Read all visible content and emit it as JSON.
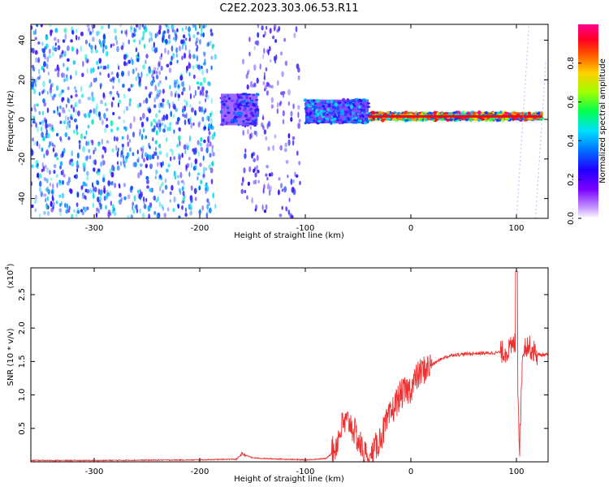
{
  "title": "C2E2.2023.303.06.53.R11",
  "colors": {
    "accent": "#ef3030",
    "frame": "#000000",
    "background": "#ffffff"
  },
  "chart_data": [
    {
      "type": "heatmap",
      "title": "C2E2.2023.303.06.53.R11",
      "xlabel": "Height of straight line (km)",
      "ylabel": "Frequency (Hz)",
      "xlim": [
        -360,
        130
      ],
      "ylim": [
        -50,
        48
      ],
      "xticks": [
        -300,
        -200,
        -100,
        0,
        100
      ],
      "xtick_labels": [
        "-300",
        "-200",
        "-100",
        "0",
        "100"
      ],
      "yticks": [
        -40,
        -20,
        0,
        20,
        40
      ],
      "ytick_labels": [
        "-40",
        "-20",
        "0",
        "20",
        "40"
      ],
      "colorbar": {
        "label": "Normalized spectral amplitude",
        "range": [
          0,
          1
        ],
        "ticks": [
          0.0,
          0.2,
          0.4,
          0.6,
          0.8
        ],
        "tick_labels": [
          "0.0",
          "0.2",
          "0.4",
          "0.6",
          "0.8"
        ],
        "colormap": [
          "#ffffff",
          "#a060ff",
          "#3000ff",
          "#0050ff",
          "#00e0ff",
          "#00ff40",
          "#d0ff00",
          "#ff8000",
          "#ff0000",
          "#ff0090"
        ]
      },
      "regions": [
        {
          "x": [
            -360,
            -185
          ],
          "freq_extent": [
            -50,
            48
          ],
          "amplitude": 0.1,
          "description": "broadband noise"
        },
        {
          "x": [
            -160,
            -105
          ],
          "freq_extent": [
            -50,
            48
          ],
          "amplitude": 0.05
        },
        {
          "x": [
            -180,
            -145
          ],
          "freq_center": 5,
          "freq_halfwidth": 8,
          "amplitude": 0.35
        },
        {
          "x": [
            -100,
            -40
          ],
          "freq_center": 4,
          "freq_halfwidth": 6,
          "amplitude": 0.45
        },
        {
          "x": [
            -40,
            125
          ],
          "freq_center": 1.5,
          "freq_halfwidth": 2,
          "amplitude": 0.9
        }
      ],
      "grid": false
    },
    {
      "type": "line",
      "xlabel": "Height of straight line (km)",
      "ylabel": "SNR (10 * v/v)",
      "y_multiplier": "(x10",
      "y_multiplier_exp": "4",
      "y_multiplier_close": ")",
      "xlim": [
        -360,
        130
      ],
      "ylim": [
        0,
        2.9
      ],
      "xticks": [
        -300,
        -200,
        -100,
        0,
        100
      ],
      "xtick_labels": [
        "-300",
        "-200",
        "-100",
        "0",
        "100"
      ],
      "yticks": [
        0.5,
        1.0,
        1.5,
        2.0,
        2.5
      ],
      "ytick_labels": [
        "0.5",
        "1.0",
        "1.5",
        "2.0",
        "2.5"
      ],
      "grid": false,
      "series": [
        {
          "color": "#ef3030",
          "x": [
            -360,
            -300,
            -200,
            -165,
            -160,
            -150,
            -140,
            -120,
            -100,
            -80,
            -72,
            -65,
            -58,
            -52,
            -45,
            -40,
            -35,
            -25,
            -15,
            -10,
            -5,
            0,
            5,
            10,
            20,
            30,
            40,
            60,
            80,
            90,
            95,
            100,
            103,
            106,
            110,
            120,
            130
          ],
          "y": [
            0.02,
            0.02,
            0.03,
            0.04,
            0.12,
            0.06,
            0.05,
            0.04,
            0.03,
            0.05,
            0.2,
            0.55,
            0.6,
            0.4,
            0.15,
            0.05,
            0.15,
            0.5,
            0.85,
            1.0,
            1.05,
            1.1,
            1.25,
            1.35,
            1.45,
            1.55,
            1.6,
            1.62,
            1.63,
            1.65,
            1.7,
            1.8,
            0.2,
            1.7,
            1.75,
            1.6,
            1.6
          ]
        }
      ]
    }
  ]
}
